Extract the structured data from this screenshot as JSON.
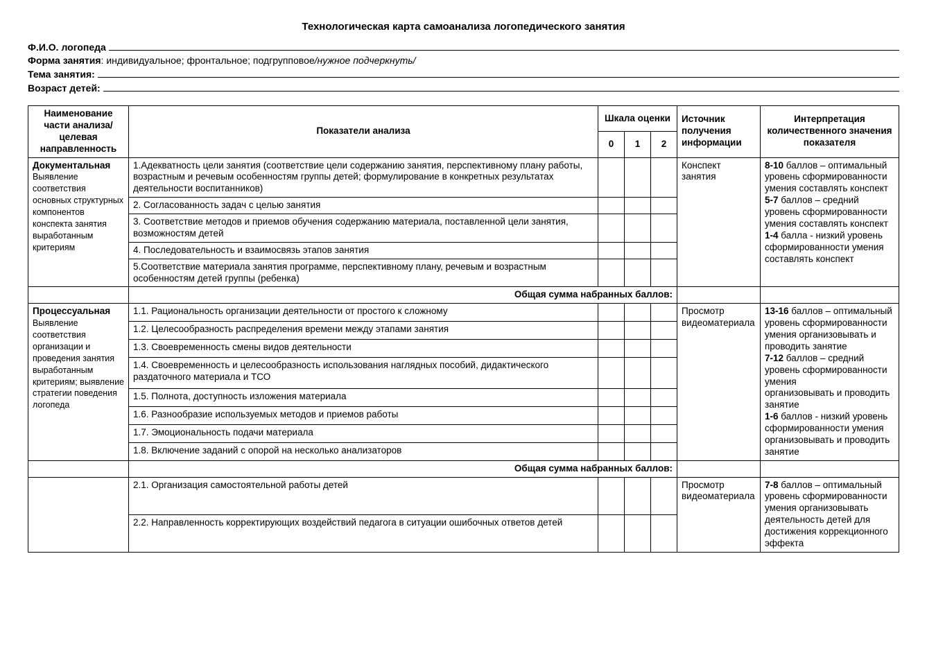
{
  "title": "Технологическая карта  самоанализа логопедического занятия",
  "fields": {
    "fio_label": "Ф.И.О. логопеда",
    "form_label": "Форма занятия",
    "form_value": ": индивидуальное; фронтальное; подгрупповое   ",
    "form_hint": "/нужное подчеркнуть/",
    "topic_label": "Тема занятия:",
    "age_label": "Возраст детей:"
  },
  "headers": {
    "name": "Наименование части анализа/целевая направленность",
    "indicators": "Показатели анализа",
    "scale": "Шкала оценки",
    "s0": "0",
    "s1": "1",
    "s2": "2",
    "source": "Источник получения информации",
    "interp": "Интерпретация количественного значения показателя"
  },
  "sections": [
    {
      "title": "Документальная",
      "desc": "Выявление соответствия основных структурных компонентов конспекта занятия выработанным критериям",
      "source": "Конспект занятия",
      "interp_parts": [
        {
          "b": "8-10",
          "t": "  баллов – оптимальный уровень сформированности умения составлять конспект"
        },
        {
          "b": "5-7",
          "t": " баллов – средний уровень сформированности умения составлять конспект"
        },
        {
          "b": "1-4",
          "t": " балла -  низкий уровень сформированности умения составлять конспект"
        }
      ],
      "rows": [
        "1.Адекватность  цели занятия (соответствие цели содержанию занятия, перспективному плану работы, возрастным и речевым особенностям группы детей; формулирование в конкретных результатах деятельности воспитанников)",
        "2. Согласованность задач  с целью занятия",
        "3. Соответствие методов и приемов обучения содержанию материала, поставленной цели занятия, возможностям детей",
        "4. Последовательность и взаимосвязь этапов занятия",
        "5.Соответствие материала занятия программе, перспективному плану, речевым и возрастным особенностям  детей  группы (ребенка)"
      ],
      "sum": "Общая сумма  набранных баллов:"
    },
    {
      "title": "Процессуальная",
      "desc": "Выявление соответствия организации  и проведения  занятия выработанным критериям; выявление стратегии поведения  логопеда",
      "source": "Просмотр видеоматериала",
      "interp_parts": [
        {
          "b": "13-16",
          "t": "  баллов – оптимальный  уровень сформированности умения организовывать и проводить занятие"
        },
        {
          "b": "7-12",
          "t": "  баллов – средний уровень  сформированности умения"
        },
        {
          "b": "",
          "t": "организовывать и проводить занятие"
        },
        {
          "b": "1-6",
          "t": " баллов -  низкий уровень сформированности умения организовывать и проводить занятие"
        }
      ],
      "rows": [
        "1.1. Рациональность организации деятельности от простого к сложному",
        "1.2. Целесообразность распределения времени между этапами занятия",
        "1.3. Своевременность смены видов деятельности",
        "1.4. Своевременность и целесообразность использования наглядных пособий, дидактического раздаточного материала и ТСО",
        "1.5. Полнота, доступность изложения материала",
        "1.6. Разнообразие используемых методов и приемов работы",
        "1.7. Эмоциональность подачи материала",
        "1.8. Включение заданий с опорой на несколько анализаторов"
      ],
      "sum": "Общая сумма  набранных баллов:"
    },
    {
      "title": "",
      "desc": "",
      "source": "Просмотр видеоматериала",
      "interp_parts": [
        {
          "b": "7-8",
          "t": "  баллов – оптимальный уровень сформированности умения организовывать деятельность детей для достижения коррекционного эффекта"
        }
      ],
      "rows": [
        "2.1. Организация самостоятельной работы детей",
        "2.2. Направленность  корректирующих воздействий педагога в ситуации  ошибочных ответов детей"
      ],
      "sum": ""
    }
  ]
}
